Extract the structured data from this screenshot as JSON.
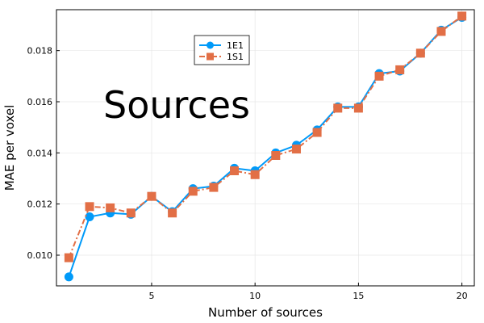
{
  "chart_data": {
    "type": "line",
    "title": "",
    "xlabel": "Number of sources",
    "ylabel": "MAE per voxel",
    "annotation": "Sources",
    "xlim": [
      0.4,
      20.6
    ],
    "ylim": [
      0.0088,
      0.0196
    ],
    "xticks": [
      5,
      10,
      15,
      20
    ],
    "yticks": [
      0.01,
      0.012,
      0.014,
      0.016,
      0.018
    ],
    "ytick_labels": [
      "0.010",
      "0.012",
      "0.014",
      "0.016",
      "0.018"
    ],
    "grid": true,
    "legend_position": "top-center",
    "x": [
      1,
      2,
      3,
      4,
      5,
      6,
      7,
      8,
      9,
      10,
      11,
      12,
      13,
      14,
      15,
      16,
      17,
      18,
      19,
      20
    ],
    "series": [
      {
        "name": "1E1",
        "color": "#009af9",
        "marker": "circle",
        "line_style": "solid",
        "values": [
          0.00915,
          0.0115,
          0.01165,
          0.0116,
          0.0123,
          0.0117,
          0.0126,
          0.0127,
          0.0134,
          0.0133,
          0.014,
          0.0143,
          0.0149,
          0.0158,
          0.0158,
          0.0171,
          0.0172,
          0.0179,
          0.0188,
          0.0193
        ]
      },
      {
        "name": "1S1",
        "color": "#e26f46",
        "marker": "square",
        "line_style": "dashdot",
        "values": [
          0.0099,
          0.0119,
          0.01185,
          0.01165,
          0.0123,
          0.01165,
          0.0125,
          0.01265,
          0.0133,
          0.01315,
          0.0139,
          0.01415,
          0.0148,
          0.01575,
          0.01575,
          0.017,
          0.01725,
          0.0179,
          0.01875,
          0.01935
        ]
      }
    ]
  }
}
